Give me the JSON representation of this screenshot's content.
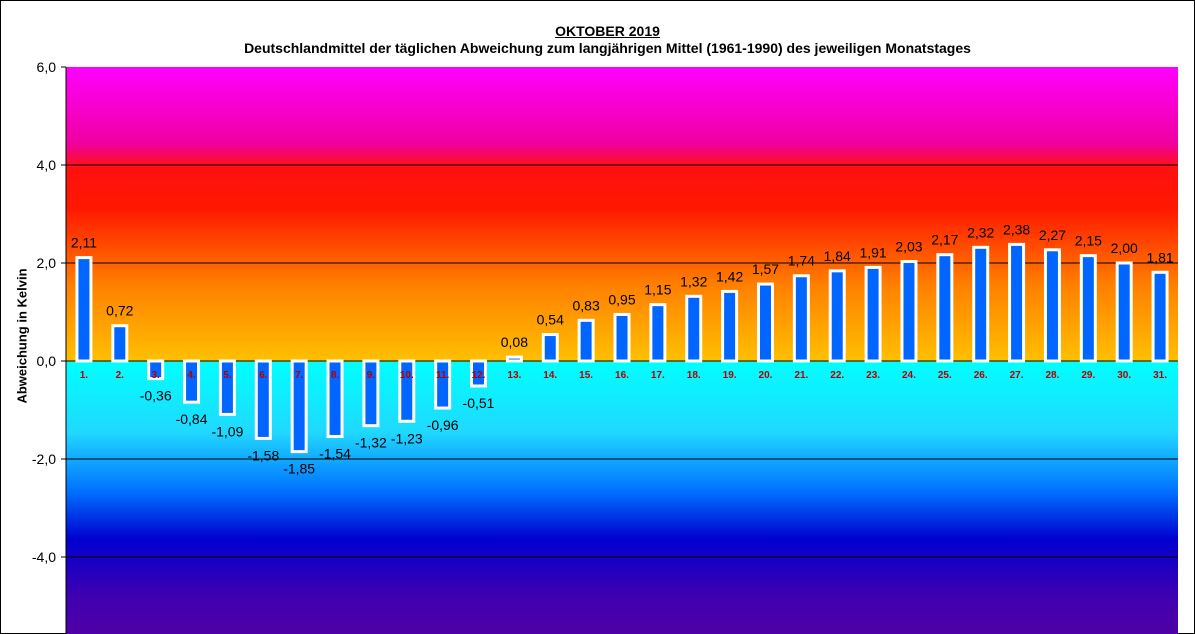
{
  "chart_data": {
    "type": "bar",
    "title": "OKTOBER 2019",
    "subtitle": "Deutschlandmittel der täglichen Abweichung zum langjährigen Mittel (1961-1990) des jeweiligen Monatstages",
    "xlabel": "",
    "ylabel": "Abweichung in Kelvin",
    "ylim": [
      -6,
      6
    ],
    "yticks": [
      "6,0",
      "4,0",
      "2,0",
      "0,0",
      "-2,0",
      "-4,0"
    ],
    "grid": true,
    "categories": [
      "1.",
      "2.",
      "3.",
      "4.",
      "5.",
      "6.",
      "7.",
      "8.",
      "9.",
      "10.",
      "11.",
      "12.",
      "13.",
      "14.",
      "15.",
      "16.",
      "17.",
      "18.",
      "19.",
      "20.",
      "21.",
      "22.",
      "23.",
      "24.",
      "25.",
      "26.",
      "27.",
      "28.",
      "29.",
      "30.",
      "31."
    ],
    "values": [
      2.11,
      0.72,
      -0.36,
      -0.84,
      -1.09,
      -1.58,
      -1.85,
      -1.54,
      -1.32,
      -1.23,
      -0.96,
      -0.51,
      0.08,
      0.54,
      0.83,
      0.95,
      1.15,
      1.32,
      1.42,
      1.57,
      1.74,
      1.84,
      1.91,
      2.03,
      2.17,
      2.32,
      2.38,
      2.27,
      2.15,
      2.0,
      1.81
    ],
    "value_labels": [
      "2,11",
      "0,72",
      "-0,36",
      "-0,84",
      "-1,09",
      "-1,58",
      "-1,85",
      "-1,54",
      "-1,32",
      "-1,23",
      "-0,96",
      "-0,51",
      "0,08",
      "0,54",
      "0,83",
      "0,95",
      "1,15",
      "1,32",
      "1,42",
      "1,57",
      "1,74",
      "1,84",
      "1,91",
      "2,03",
      "2,17",
      "2,32",
      "2,38",
      "2,27",
      "2,15",
      "2,00",
      "1,81"
    ],
    "colors": {
      "bar_fill": "#0066ff",
      "bar_outline": "#ffffff",
      "category_label": "#b00000"
    }
  }
}
